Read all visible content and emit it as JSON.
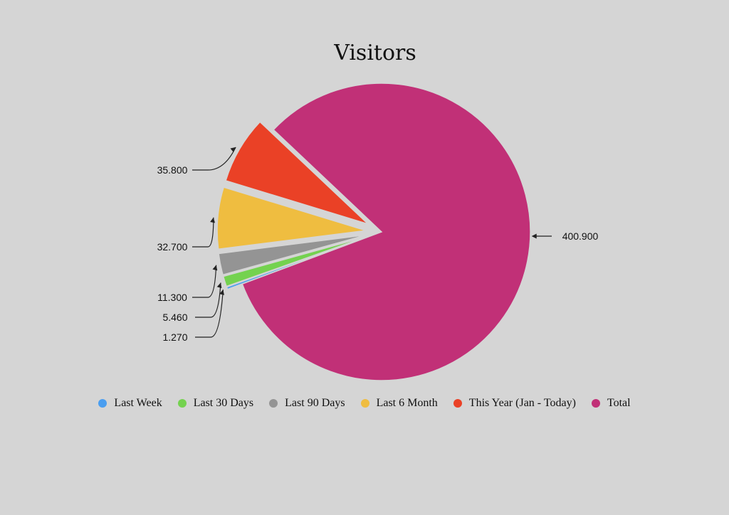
{
  "chart_data": {
    "type": "pie",
    "title": "Visitors",
    "series": [
      {
        "name": "Last Week",
        "value": 1.27,
        "label": "1.270",
        "color": "#4a9ef0",
        "exploded": true
      },
      {
        "name": "Last 30 Days",
        "value": 5.46,
        "label": "5.460",
        "color": "#74d24f",
        "exploded": true
      },
      {
        "name": "Last 90 Days",
        "value": 11.3,
        "label": "11.300",
        "color": "#949494",
        "exploded": true
      },
      {
        "name": "Last 6 Month",
        "value": 32.7,
        "label": "32.700",
        "color": "#efbd40",
        "exploded": true
      },
      {
        "name": "This Year (Jan - Today)",
        "value": 35.8,
        "label": "35.800",
        "color": "#ea4126",
        "exploded": true
      },
      {
        "name": "Total",
        "value": 400.9,
        "label": "400.900",
        "color": "#c13077",
        "exploded": false
      }
    ],
    "legend_position": "bottom"
  }
}
